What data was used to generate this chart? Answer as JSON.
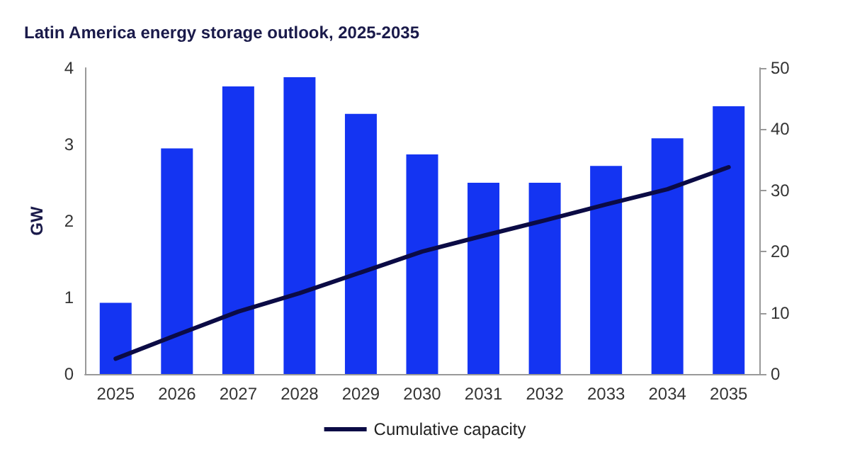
{
  "chart_data": {
    "type": "bar",
    "title": "Latin America energy storage outlook, 2025-2035",
    "ylabel": "GW",
    "categories": [
      "2025",
      "2026",
      "2027",
      "2028",
      "2029",
      "2030",
      "2031",
      "2032",
      "2033",
      "2034",
      "2035"
    ],
    "series": [
      {
        "color": "#1434f2",
        "values": [
          0.93,
          2.95,
          3.76,
          3.88,
          3.4,
          2.87,
          2.5,
          2.5,
          2.72,
          3.08,
          3.5
        ]
      },
      {
        "type": "line",
        "name": "Cumulative capacity",
        "color": "#0b0b45",
        "axis": "y2",
        "values": [
          2.5,
          6.4,
          10.2,
          13.2,
          16.6,
          20,
          22.6,
          25.1,
          27.7,
          30.2,
          33.8
        ]
      }
    ],
    "ylim": [
      0,
      4
    ],
    "yticks": [
      0,
      1,
      2,
      3,
      4
    ],
    "y2lim": [
      0,
      50
    ],
    "y2ticks": [
      0,
      10,
      20,
      30,
      40,
      50
    ],
    "grid": false,
    "legend": "bottom",
    "marker": "none",
    "line_style": "solid"
  }
}
